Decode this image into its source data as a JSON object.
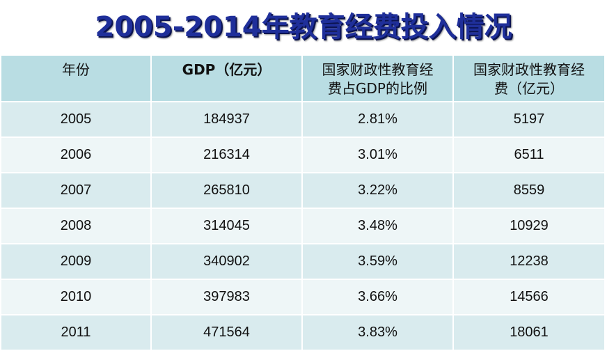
{
  "title": "2005-2014年教育经费投入情况",
  "table": {
    "headers": [
      {
        "lines": [
          "年份"
        ]
      },
      {
        "lines": [
          "GDP（亿元）"
        ]
      },
      {
        "lines": [
          "国家财政性教育经",
          "费占GDP的比例"
        ]
      },
      {
        "lines": [
          "国家财政性教育经",
          "费（亿元）"
        ]
      }
    ],
    "rows": [
      [
        "2005",
        "184937",
        "2.81%",
        "5197"
      ],
      [
        "2006",
        "216314",
        "3.01%",
        "6511"
      ],
      [
        "2007",
        "265810",
        "3.22%",
        "8559"
      ],
      [
        "2008",
        "314045",
        "3.48%",
        "10929"
      ],
      [
        "2009",
        "340902",
        "3.59%",
        "12238"
      ],
      [
        "2010",
        "397983",
        "3.66%",
        "14566"
      ],
      [
        "2011",
        "471564",
        "3.83%",
        "18061"
      ]
    ]
  },
  "colors": {
    "title": "#1f2f9a",
    "header_bg": "#b9dde3",
    "row_dark": "#d9ebee",
    "row_light": "#eef6f7"
  }
}
